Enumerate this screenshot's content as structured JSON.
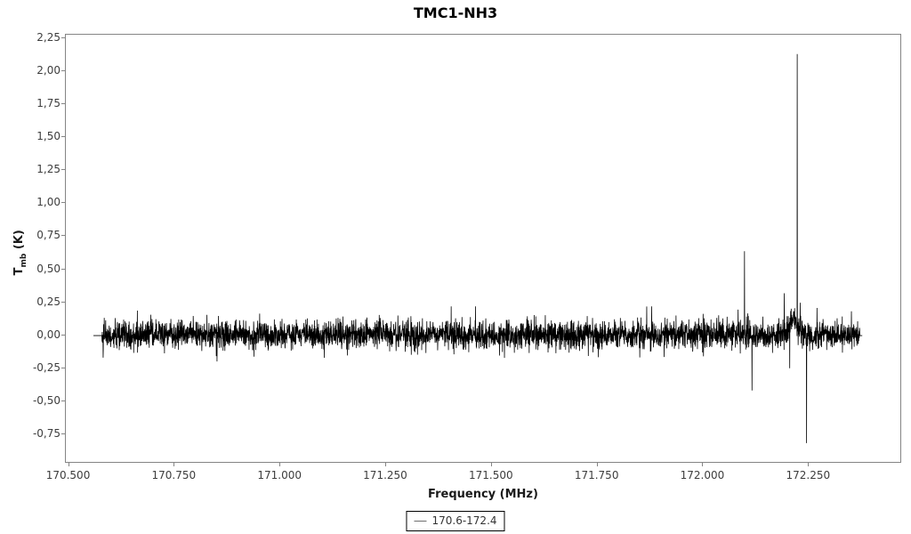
{
  "chart": {
    "title": "TMC1-NH3",
    "xlabel": "Frequency (MHz)",
    "ylabel_t": "T",
    "ylabel_sub": "mb",
    "ylabel_unit": "(K)",
    "legend": {
      "label": "170.6-172.4",
      "line_color": "#6e6e6e"
    },
    "colors": {
      "line": "#000000",
      "axis": "#858585",
      "tick_text": "#3d3d3d",
      "background": "#ffffff"
    }
  },
  "chart_data": {
    "type": "line",
    "title": "TMC1-NH3",
    "xlabel": "Frequency (MHz)",
    "ylabel": "Tmb (K)",
    "legend_entries": [
      "170.6-172.4"
    ],
    "legend_position": "bottom-center",
    "grid": false,
    "xlim": [
      170.4926,
      172.4703
    ],
    "ylim": [
      -0.973,
      2.277
    ],
    "x_range": [
      170.558,
      172.38
    ],
    "xticks": [
      {
        "v": 170.5,
        "label": "170.500"
      },
      {
        "v": 170.75,
        "label": "170.750"
      },
      {
        "v": 171.0,
        "label": "171.000"
      },
      {
        "v": 171.25,
        "label": "171.250"
      },
      {
        "v": 171.5,
        "label": "171.500"
      },
      {
        "v": 171.75,
        "label": "171.750"
      },
      {
        "v": 172.0,
        "label": "172.000"
      },
      {
        "v": 172.25,
        "label": "172.250"
      }
    ],
    "yticks": [
      {
        "v": 2.25,
        "label": "2,25"
      },
      {
        "v": 2.0,
        "label": "2,00"
      },
      {
        "v": 1.75,
        "label": "1,75"
      },
      {
        "v": 1.5,
        "label": "1,50"
      },
      {
        "v": 1.25,
        "label": "1,25"
      },
      {
        "v": 1.0,
        "label": "1,00"
      },
      {
        "v": 0.75,
        "label": "0,75"
      },
      {
        "v": 0.5,
        "label": "0,50"
      },
      {
        "v": 0.25,
        "label": "0,25"
      },
      {
        "v": 0.0,
        "label": "0,00"
      },
      {
        "v": -0.25,
        "label": "-0,25"
      },
      {
        "v": -0.5,
        "label": "-0,50"
      },
      {
        "v": -0.75,
        "label": "-0,75"
      }
    ],
    "noise": {
      "mean": -0.006,
      "sigma": 0.053,
      "n_points": 4200,
      "seed": 42,
      "clip": [
        -0.26,
        0.21
      ],
      "edge_flat_mhz": 0.02,
      "edge_flat_value": -0.012
    },
    "pedestal": {
      "freq": 172.218,
      "amp": 0.13,
      "sigma_mhz": 0.012
    },
    "peaks": [
      {
        "freq": 172.101,
        "value": 0.63
      },
      {
        "freq": 172.119,
        "value": -0.43
      },
      {
        "freq": 172.195,
        "value": 0.31
      },
      {
        "freq": 172.208,
        "value": -0.26
      },
      {
        "freq": 172.226,
        "value": 2.13
      },
      {
        "freq": 172.248,
        "value": -0.83
      }
    ],
    "line_color": "#000000"
  }
}
